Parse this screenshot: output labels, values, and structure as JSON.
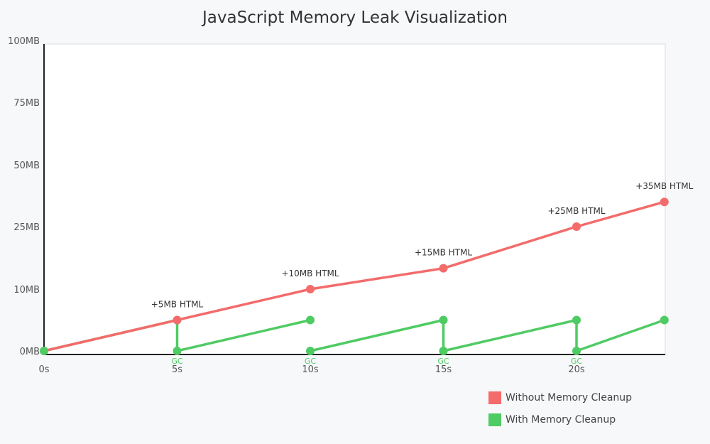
{
  "chart_data": {
    "type": "line",
    "title": "JavaScript Memory Leak Visualization",
    "xlabel": "",
    "ylabel": "",
    "x_ticks": [
      "0s",
      "5s",
      "10s",
      "15s",
      "20s"
    ],
    "y_ticks": [
      "0MB",
      "10MB",
      "25MB",
      "50MB",
      "75MB",
      "100MB"
    ],
    "grid": false,
    "legend_position": "bottom-right",
    "series": [
      {
        "name": "Without Memory Cleanup",
        "color": "#f36b6b",
        "points": [
          {
            "x": 0,
            "y": 0
          },
          {
            "x": 5,
            "y": 5,
            "label": "+5MB HTML"
          },
          {
            "x": 10,
            "y": 10,
            "label": "+10MB HTML"
          },
          {
            "x": 15,
            "y": 15,
            "label": "+15MB HTML"
          },
          {
            "x": 20,
            "y": 25,
            "label": "+25MB HTML"
          },
          {
            "x": 23.3,
            "y": 35,
            "label": "+35MB HTML"
          }
        ]
      },
      {
        "name": "With Memory Cleanup",
        "color": "#4fcb63",
        "segments": [
          [
            {
              "x": 0,
              "y": 0
            },
            {
              "x": 5,
              "y": 5
            }
          ],
          [
            {
              "x": 5,
              "y": 0
            },
            {
              "x": 10,
              "y": 5
            }
          ],
          [
            {
              "x": 10,
              "y": 0
            },
            {
              "x": 15,
              "y": 5
            }
          ],
          [
            {
              "x": 15,
              "y": 0
            },
            {
              "x": 20,
              "y": 5
            }
          ],
          [
            {
              "x": 20,
              "y": 0
            },
            {
              "x": 23.3,
              "y": 5
            }
          ]
        ],
        "gc_events": [
          {
            "x": 5,
            "from": 5,
            "to": 0,
            "label": "GC"
          },
          {
            "x": 15,
            "from": 5,
            "to": 0,
            "label": "GC"
          },
          {
            "x": 20,
            "from": 5,
            "to": 0,
            "label": "GC"
          }
        ],
        "gc_labels_only": [
          {
            "x": 10,
            "label": "GC"
          }
        ]
      }
    ]
  }
}
